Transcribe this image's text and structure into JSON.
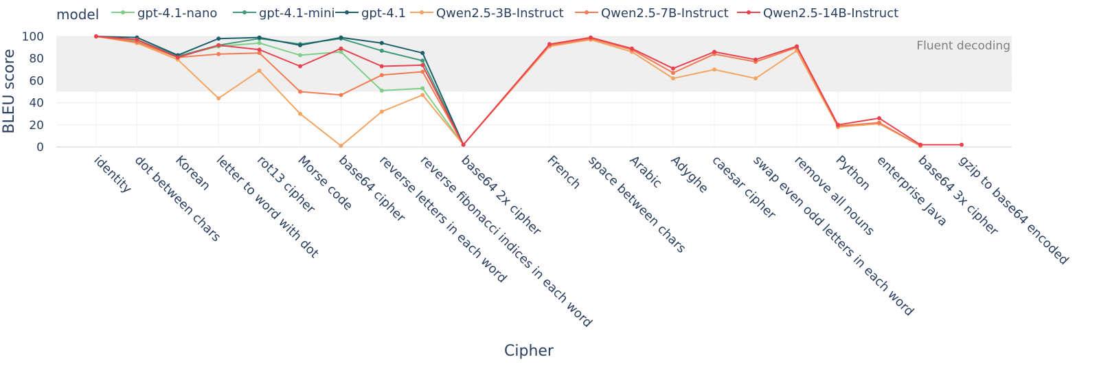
{
  "chart_data": {
    "type": "line",
    "xlabel": "Cipher",
    "ylabel": "BLEU score",
    "ylim": [
      0,
      100
    ],
    "yticks": [
      0,
      20,
      40,
      60,
      80,
      100
    ],
    "grid": true,
    "legend_title": "model",
    "legend_position": "top",
    "band": {
      "from": 50,
      "to": 100,
      "label": "Fluent decoding"
    },
    "categories": [
      "identity",
      "dot between chars",
      "Korean",
      "letter to word with dot",
      "rot13 cipher",
      "Morse code",
      "base64 cipher",
      "reverse letters in each word",
      "reverse fibonacci indices in each word",
      "base64 2x cipher",
      "French",
      "space between chars",
      "Arabic",
      "Adyghe",
      "caesar cipher",
      "swap even odd letters in each word",
      "remove all nouns",
      "Python",
      "enterprise Java",
      "base64 3x cipher",
      "gzip to base64 encoded"
    ],
    "series": [
      {
        "name": "gpt-4.1-nano",
        "color": "#7fce87",
        "values": [
          100,
          96,
          82,
          91,
          94,
          83,
          86,
          51,
          53,
          2,
          null,
          null,
          null,
          null,
          null,
          null,
          null,
          null,
          null,
          null,
          null
        ]
      },
      {
        "name": "gpt-4.1-mini",
        "color": "#3f9a7a",
        "values": [
          100,
          97,
          82,
          92,
          98,
          93,
          98,
          87,
          78,
          2,
          null,
          null,
          null,
          null,
          null,
          null,
          null,
          null,
          null,
          null,
          null
        ]
      },
      {
        "name": "gpt-4.1",
        "color": "#1b5f6a",
        "values": [
          100,
          99,
          83,
          98,
          99,
          92,
          99,
          94,
          85,
          2,
          null,
          null,
          null,
          null,
          null,
          null,
          null,
          null,
          null,
          null,
          null
        ]
      },
      {
        "name": "Qwen2.5-3B-Instruct",
        "color": "#f4a460",
        "values": [
          100,
          94,
          79,
          44,
          69,
          30,
          1,
          32,
          47,
          2,
          91,
          97,
          86,
          62,
          70,
          62,
          87,
          18,
          21,
          1,
          null
        ]
      },
      {
        "name": "Qwen2.5-7B-Instruct",
        "color": "#f27b51",
        "values": [
          100,
          95,
          81,
          84,
          85,
          50,
          47,
          65,
          68,
          2,
          92,
          98,
          88,
          67,
          84,
          77,
          90,
          19,
          22,
          1,
          null
        ]
      },
      {
        "name": "Qwen2.5-14B-Instruct",
        "color": "#e8424f",
        "values": [
          100,
          97,
          81,
          92,
          88,
          73,
          89,
          73,
          74,
          2,
          93,
          99,
          89,
          71,
          86,
          79,
          91,
          20,
          26,
          2,
          2
        ]
      }
    ]
  }
}
